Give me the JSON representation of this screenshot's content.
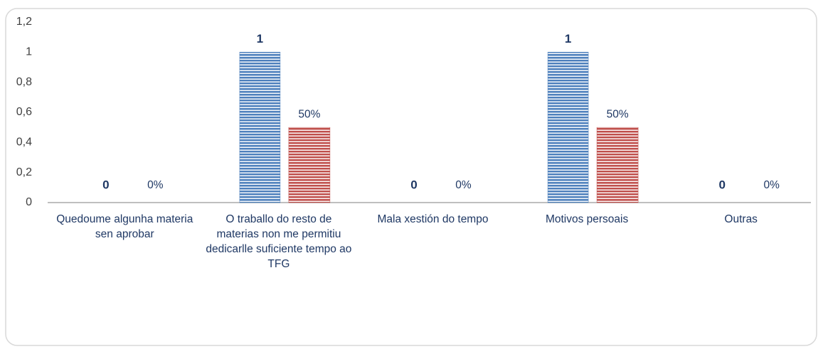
{
  "chart_data": {
    "type": "bar",
    "categories": [
      "Quedoume algunha materia sen aprobar",
      "O traballo do resto de materias non me permitiu dedicarlle suficiente tempo ao TFG",
      "Mala xestión do tempo",
      "Motivos persoais",
      "Outras"
    ],
    "series": [
      {
        "color": "#4f81bd",
        "values": [
          0,
          1,
          0,
          1,
          0
        ]
      },
      {
        "color": "#c0504d",
        "values": [
          0,
          0.5,
          0,
          0.5,
          0
        ],
        "value_labels": [
          "0%",
          "50%",
          "0%",
          "50%",
          "0%"
        ]
      }
    ],
    "ylim": [
      0,
      1.2
    ],
    "yticks": [
      0,
      {
        "value": 0.2,
        "label": "0,2"
      },
      {
        "value": 0.4,
        "label": "0,4"
      },
      {
        "value": 0.6,
        "label": "0,6"
      },
      {
        "value": 0.8,
        "label": "0,8"
      },
      1,
      {
        "value": 1.2,
        "label": "1,2"
      }
    ]
  }
}
